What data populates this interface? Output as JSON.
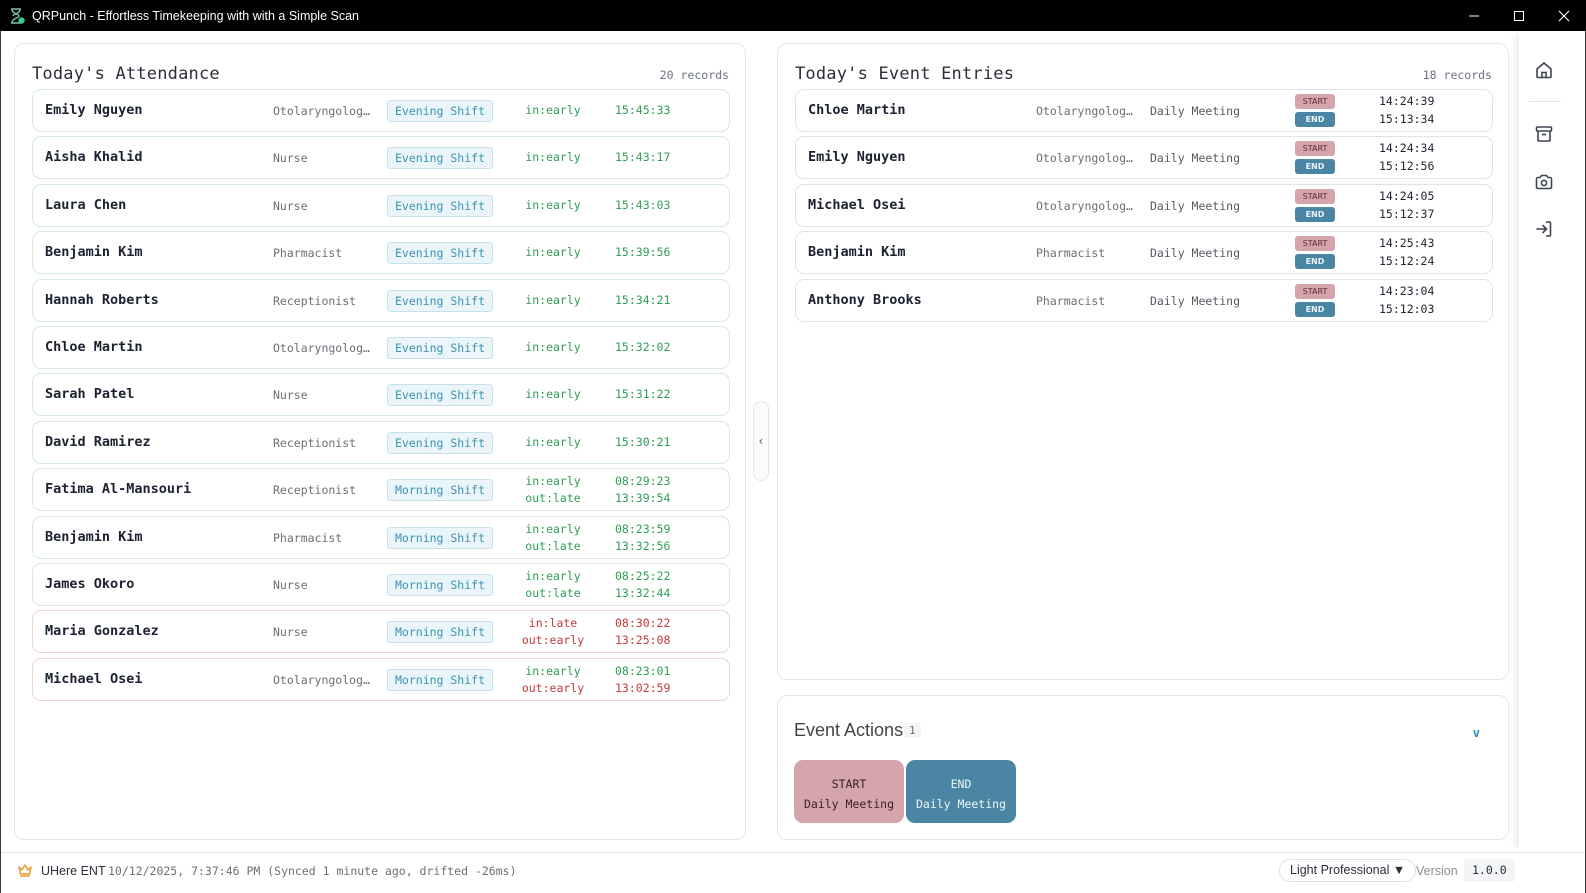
{
  "window": {
    "title": "QRPunch - Effortless Timekeeping with with a Simple Scan",
    "controls": [
      "minimize",
      "maximize",
      "close"
    ]
  },
  "attendance": {
    "title": "Today's Attendance",
    "count": "20 records",
    "rows": [
      {
        "name": "Emily Nguyen",
        "role": "Otolaryngologi…",
        "shift": "Evening Shift",
        "status_in": "in:early",
        "time_in": "15:45:33",
        "status_out": null,
        "time_out": null,
        "in_color": "green",
        "out_color": null,
        "row_state": "ok"
      },
      {
        "name": "Aisha Khalid",
        "role": "Nurse",
        "shift": "Evening Shift",
        "status_in": "in:early",
        "time_in": "15:43:17",
        "status_out": null,
        "time_out": null,
        "in_color": "green",
        "out_color": null,
        "row_state": "ok"
      },
      {
        "name": "Laura Chen",
        "role": "Nurse",
        "shift": "Evening Shift",
        "status_in": "in:early",
        "time_in": "15:43:03",
        "status_out": null,
        "time_out": null,
        "in_color": "green",
        "out_color": null,
        "row_state": "ok"
      },
      {
        "name": "Benjamin Kim",
        "role": "Pharmacist",
        "shift": "Evening Shift",
        "status_in": "in:early",
        "time_in": "15:39:56",
        "status_out": null,
        "time_out": null,
        "in_color": "green",
        "out_color": null,
        "row_state": "ok"
      },
      {
        "name": "Hannah Roberts",
        "role": "Receptionist",
        "shift": "Evening Shift",
        "status_in": "in:early",
        "time_in": "15:34:21",
        "status_out": null,
        "time_out": null,
        "in_color": "green",
        "out_color": null,
        "row_state": "ok"
      },
      {
        "name": "Chloe Martin",
        "role": "Otolaryngologi…",
        "shift": "Evening Shift",
        "status_in": "in:early",
        "time_in": "15:32:02",
        "status_out": null,
        "time_out": null,
        "in_color": "green",
        "out_color": null,
        "row_state": "ok"
      },
      {
        "name": "Sarah Patel",
        "role": "Nurse",
        "shift": "Evening Shift",
        "status_in": "in:early",
        "time_in": "15:31:22",
        "status_out": null,
        "time_out": null,
        "in_color": "green",
        "out_color": null,
        "row_state": "ok"
      },
      {
        "name": "David Ramirez",
        "role": "Receptionist",
        "shift": "Evening Shift",
        "status_in": "in:early",
        "time_in": "15:30:21",
        "status_out": null,
        "time_out": null,
        "in_color": "green",
        "out_color": null,
        "row_state": "ok"
      },
      {
        "name": "Fatima Al-Mansouri",
        "role": "Receptionist",
        "shift": "Morning Shift",
        "status_in": "in:early",
        "time_in": "08:29:23",
        "status_out": "out:late",
        "time_out": "13:39:54",
        "in_color": "green",
        "out_color": "green",
        "row_state": "ok"
      },
      {
        "name": "Benjamin Kim",
        "role": "Pharmacist",
        "shift": "Morning Shift",
        "status_in": "in:early",
        "time_in": "08:23:59",
        "status_out": "out:late",
        "time_out": "13:32:56",
        "in_color": "green",
        "out_color": "green",
        "row_state": "ok"
      },
      {
        "name": "James Okoro",
        "role": "Nurse",
        "shift": "Morning Shift",
        "status_in": "in:early",
        "time_in": "08:25:22",
        "status_out": "out:late",
        "time_out": "13:32:44",
        "in_color": "green",
        "out_color": "green",
        "row_state": "ok"
      },
      {
        "name": "Maria Gonzalez",
        "role": "Nurse",
        "shift": "Morning Shift",
        "status_in": "in:late",
        "time_in": "08:30:22",
        "status_out": "out:early",
        "time_out": "13:25:08",
        "in_color": "red",
        "out_color": "red",
        "row_state": "warn"
      },
      {
        "name": "Michael Osei",
        "role": "Otolaryngologi…",
        "shift": "Morning Shift",
        "status_in": "in:early",
        "time_in": "08:23:01",
        "status_out": "out:early",
        "time_out": "13:02:59",
        "in_color": "green",
        "out_color": "red",
        "row_state": "warn"
      }
    ]
  },
  "events": {
    "title": "Today's Event Entries",
    "count": "18 records",
    "start_label": "START",
    "end_label": "END",
    "rows": [
      {
        "name": "Chloe Martin",
        "role": "Otolaryngologi…",
        "event": "Daily Meeting",
        "start": "14:24:39",
        "end": "15:13:34"
      },
      {
        "name": "Emily Nguyen",
        "role": "Otolaryngologi…",
        "event": "Daily Meeting",
        "start": "14:24:34",
        "end": "15:12:56"
      },
      {
        "name": "Michael Osei",
        "role": "Otolaryngologi…",
        "event": "Daily Meeting",
        "start": "14:24:05",
        "end": "15:12:37"
      },
      {
        "name": "Benjamin Kim",
        "role": "Pharmacist",
        "event": "Daily Meeting",
        "start": "14:25:43",
        "end": "15:12:24"
      },
      {
        "name": "Anthony Brooks",
        "role": "Pharmacist",
        "event": "Daily Meeting",
        "start": "14:23:04",
        "end": "15:12:03"
      }
    ]
  },
  "event_actions": {
    "title": "Event Actions",
    "count": "1",
    "toggle": "v",
    "buttons": [
      {
        "kind": "START",
        "event": "Daily Meeting"
      },
      {
        "kind": "END",
        "event": "Daily Meeting"
      }
    ]
  },
  "collapse_handle": "‹",
  "sidebar": {
    "items": [
      {
        "icon": "home-icon",
        "label": "Home"
      },
      {
        "icon": "archive-icon",
        "label": "Archive"
      },
      {
        "icon": "camera-icon",
        "label": "Camera"
      },
      {
        "icon": "sign-in-icon",
        "label": "Sign in"
      }
    ]
  },
  "statusbar": {
    "brand": "UHere ENT",
    "clock": "10/12/2025, 7:37:46 PM (Synced 1 minute ago, drifted -26ms)",
    "theme": "Light Professional ▼",
    "version_label": "Version",
    "version": "1.0.0"
  },
  "colors": {
    "green": "#2f9e56",
    "red": "#c33a3a",
    "start_badge": "#d4a5ab",
    "end_badge": "#4a86a3",
    "shift_tag_text": "#3c93b4",
    "accent": "#2b8db3"
  }
}
